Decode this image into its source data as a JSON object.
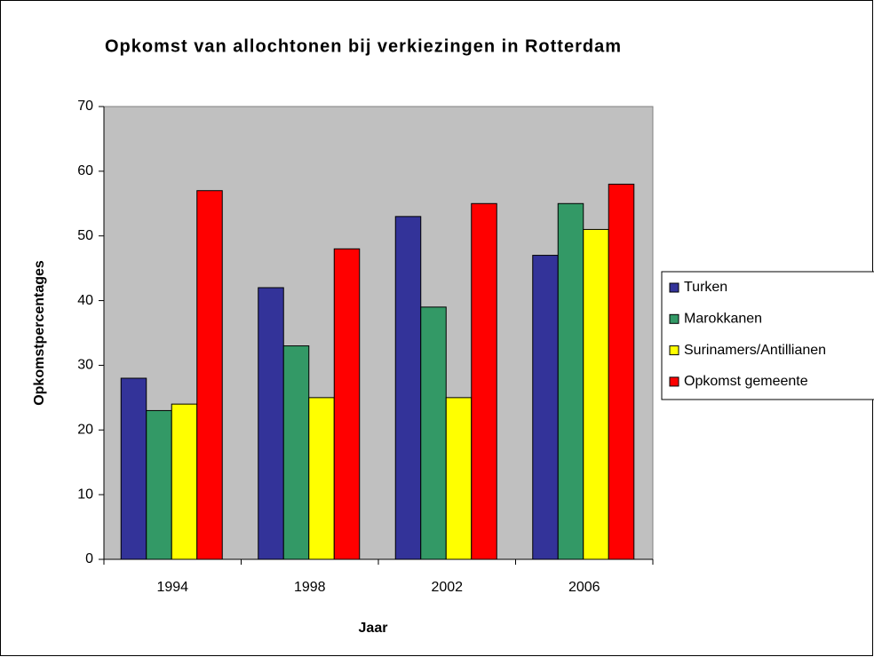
{
  "chart_data": {
    "type": "bar",
    "title": "Opkomst van allochtonen bij verkiezingen in Rotterdam",
    "xlabel": "Jaar",
    "ylabel": "Opkomstpercentages",
    "categories": [
      "1994",
      "1998",
      "2002",
      "2006"
    ],
    "series": [
      {
        "name": "Turken",
        "color": "#333399",
        "values": [
          28,
          42,
          53,
          47
        ]
      },
      {
        "name": "Marokkanen",
        "color": "#339966",
        "values": [
          23,
          33,
          39,
          55
        ]
      },
      {
        "name": "Surinamers/Antillianen",
        "color": "#ffff00",
        "values": [
          24,
          25,
          25,
          51
        ]
      },
      {
        "name": "Opkomst gemeente",
        "color": "#ff0000",
        "values": [
          57,
          48,
          55,
          58
        ]
      }
    ],
    "ylim": [
      0,
      70
    ],
    "yticks": [
      0,
      10,
      20,
      30,
      40,
      50,
      60,
      70
    ],
    "plot_background": "#c0c0c0",
    "legend": "right"
  }
}
